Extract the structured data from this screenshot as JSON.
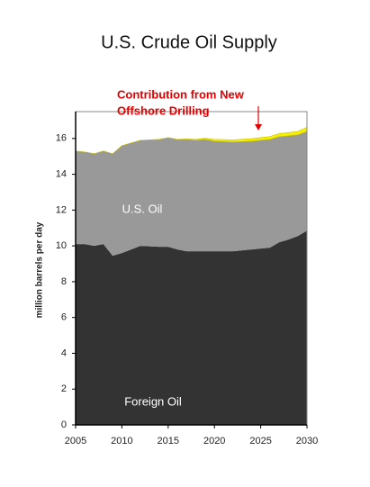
{
  "chart_data": {
    "type": "stacked-area",
    "title": "U.S. Crude Oil Supply",
    "y_label": "million barrels per day",
    "annotation": [
      "Contribution from New",
      "Offshore Drilling"
    ],
    "annotation_color": "#e00000",
    "x": [
      2005,
      2006,
      2007,
      2008,
      2009,
      2010,
      2012,
      2014,
      2015,
      2016,
      2017,
      2018,
      2019,
      2020,
      2022,
      2024,
      2025,
      2026,
      2027,
      2028,
      2029,
      2030
    ],
    "series": [
      {
        "name": "Foreign Oil",
        "color": "#333333",
        "label_color": "#ffffff",
        "values": [
          10.1,
          10.1,
          10.0,
          10.1,
          9.45,
          9.6,
          10.0,
          9.95,
          9.95,
          9.8,
          9.7,
          9.7,
          9.7,
          9.7,
          9.7,
          9.8,
          9.85,
          9.9,
          10.2,
          10.35,
          10.55,
          10.85
        ]
      },
      {
        "name": "U.S. Oil",
        "color": "#999999",
        "label_color": "#ffffff",
        "values": [
          5.2,
          5.15,
          5.15,
          5.2,
          5.7,
          6.0,
          5.9,
          6.0,
          6.1,
          6.15,
          6.25,
          6.2,
          6.25,
          6.15,
          6.1,
          6.05,
          6.05,
          6.05,
          5.9,
          5.8,
          5.65,
          5.55
        ]
      },
      {
        "color": "#f5f000",
        "values": [
          0,
          0,
          0,
          0,
          0,
          0,
          0,
          0,
          0,
          0,
          0.02,
          0.05,
          0.07,
          0.1,
          0.12,
          0.14,
          0.15,
          0.16,
          0.17,
          0.18,
          0.2,
          0.22
        ]
      }
    ],
    "xlim": [
      2005,
      2030
    ],
    "xticks": [
      2005,
      2010,
      2015,
      2020,
      2025,
      2030
    ],
    "ylim": [
      0,
      17.5
    ],
    "yticks": [
      0,
      2,
      4,
      6,
      8,
      10,
      12,
      14,
      16
    ]
  }
}
